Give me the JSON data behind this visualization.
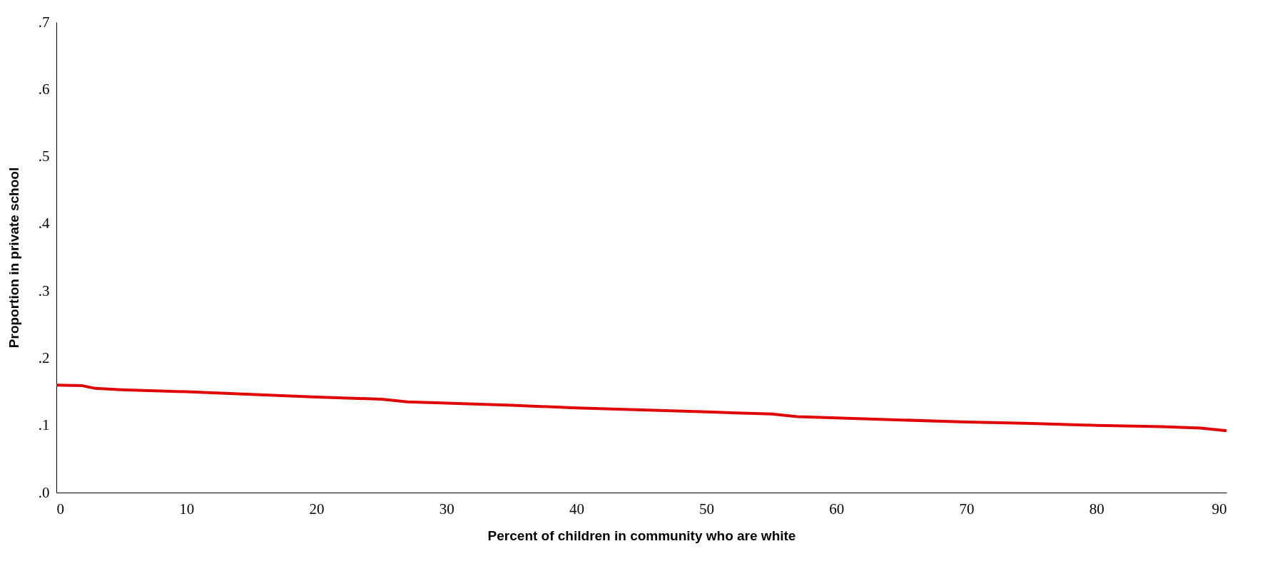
{
  "chart_data": {
    "type": "line",
    "xlabel": "Percent of children in community who are white",
    "ylabel": "Proportion in private school",
    "x": [
      0,
      2,
      3,
      5,
      10,
      15,
      20,
      25,
      27,
      30,
      35,
      40,
      45,
      50,
      55,
      57,
      60,
      65,
      70,
      75,
      80,
      85,
      88,
      90
    ],
    "series": [
      {
        "color": "#e00000",
        "values": [
          0.16,
          0.159,
          0.155,
          0.153,
          0.15,
          0.146,
          0.142,
          0.139,
          0.135,
          0.133,
          0.13,
          0.126,
          0.123,
          0.12,
          0.117,
          0.113,
          0.111,
          0.108,
          0.105,
          0.103,
          0.1,
          0.098,
          0.096,
          0.092
        ]
      }
    ],
    "xlim": [
      0,
      90
    ],
    "xticks": [
      0,
      10,
      20,
      30,
      40,
      50,
      60,
      70,
      80,
      90
    ],
    "ylim": [
      0,
      0.7
    ],
    "yticks": [
      {
        "value": 0,
        "label": ".0"
      },
      {
        "value": 0.1,
        "label": ".1"
      },
      {
        "value": 0.2,
        "label": ".2"
      },
      {
        "value": 0.3,
        "label": ".3"
      },
      {
        "value": 0.4,
        "label": ".4"
      },
      {
        "value": 0.5,
        "label": ".5"
      },
      {
        "value": 0.6,
        "label": ".6"
      },
      {
        "value": 0.7,
        "label": ".7"
      }
    ],
    "grid": false,
    "line_style": "solid",
    "marker": "none"
  }
}
